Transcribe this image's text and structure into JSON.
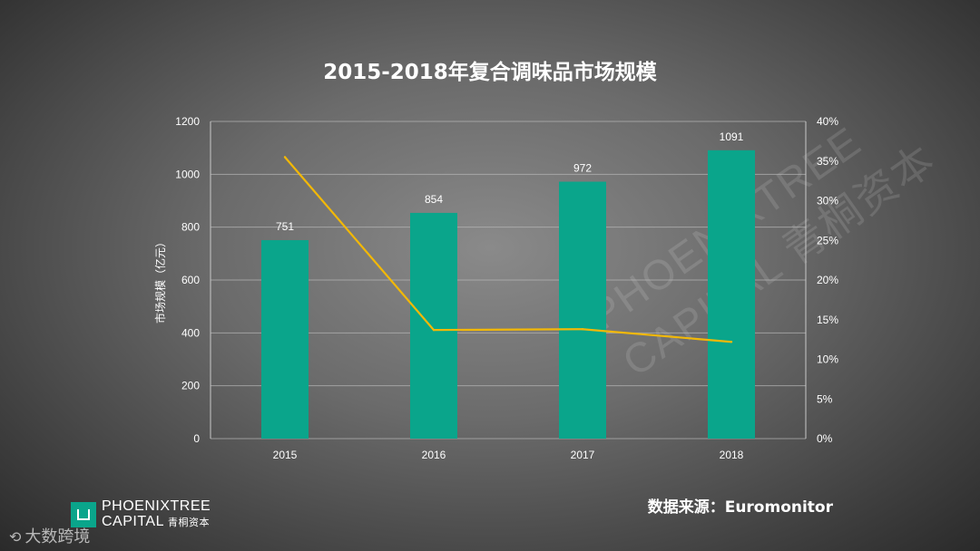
{
  "title": "2015-2018年复合调味品市场规模",
  "source": "数据来源：Euromonitor",
  "logo": {
    "line1": "PHOENIXTREE",
    "line2": "CAPITAL",
    "line2_cn": "青桐资本"
  },
  "watermark": {
    "bottom_text": "大数跨境",
    "big_line1": "PHOENIXTREE",
    "big_line2": "CAPITAL 青桐资本"
  },
  "chart_data": {
    "type": "bar",
    "categories": [
      "2015",
      "2016",
      "2017",
      "2018"
    ],
    "series": [
      {
        "type": "bar",
        "axis": "left",
        "values": [
          751,
          854,
          972,
          1091
        ],
        "color": "#0aa58b"
      },
      {
        "type": "line",
        "axis": "right",
        "values": [
          35.5,
          13.7,
          13.8,
          12.2
        ],
        "color": "#f2b807"
      }
    ],
    "ylabel": "市场规模（亿元）",
    "ylim": [
      0,
      1200
    ],
    "yticks": [
      "0",
      "200",
      "400",
      "600",
      "800",
      "1000",
      "1200"
    ],
    "y2lim": [
      0,
      40
    ],
    "y2ticks": [
      "0%",
      "5%",
      "10%",
      "15%",
      "20%",
      "25%",
      "30%",
      "35%",
      "40%"
    ],
    "data_labels": [
      "751",
      "854",
      "972",
      "1091"
    ],
    "grid": true
  }
}
